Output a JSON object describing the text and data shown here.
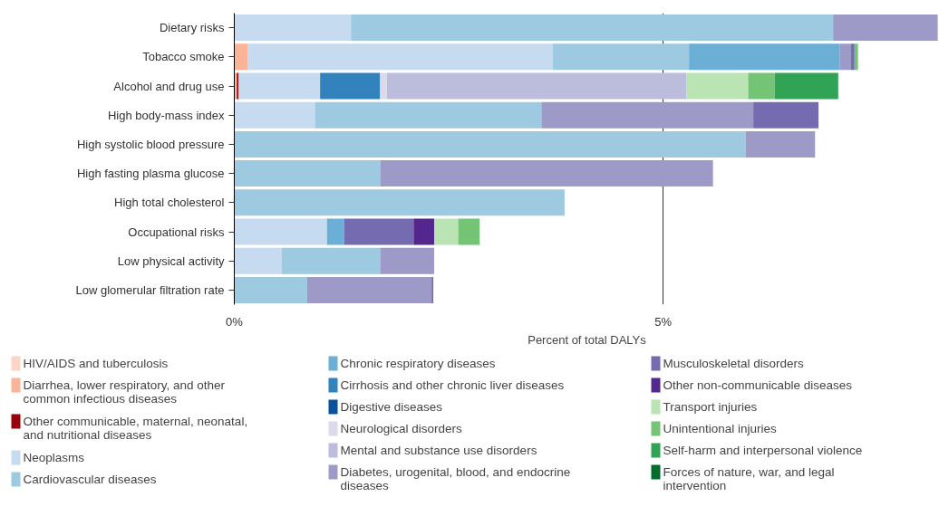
{
  "chart_data": {
    "type": "bar",
    "orientation": "horizontal",
    "stacked": true,
    "xlabel": "Percent of total DALYs",
    "categories": [
      "Dietary risks",
      "Tobacco smoke",
      "Alcohol and drug use",
      "High body-mass index",
      "High systolic blood pressure",
      "High fasting plasma glucose",
      "High total cholesterol",
      "Occupational risks",
      "Low physical activity",
      "Low glomerular filtration rate"
    ],
    "xlim": [
      0,
      8.22
    ],
    "xticks": [
      {
        "value": 0,
        "label": "0%"
      },
      {
        "value": 5,
        "label": "5%"
      }
    ],
    "grid": "x",
    "legend": "bottom",
    "series": [
      {
        "name": "HIV/AIDS and tuberculosis",
        "color": "#fdd5c4",
        "values": [
          null,
          null,
          null,
          null,
          null,
          null,
          null,
          null,
          null,
          null
        ]
      },
      {
        "name": "Diarrhea, lower respiratory, and other common infectious diseases",
        "color": "#fcb499",
        "values": [
          null,
          0.16,
          0.03,
          null,
          null,
          null,
          null,
          null,
          null,
          null
        ]
      },
      {
        "name": "Other communicable, maternal, neonatal, and nutritional diseases",
        "color": "#99000d",
        "values": [
          null,
          null,
          0.02,
          null,
          null,
          null,
          null,
          null,
          null,
          null
        ]
      },
      {
        "name": "Neoplasms",
        "color": "#c6dbef",
        "values": [
          1.36,
          3.55,
          0.95,
          0.94,
          null,
          null,
          null,
          1.08,
          0.55,
          null
        ]
      },
      {
        "name": "Cardiovascular diseases",
        "color": "#9ecae1",
        "values": [
          5.62,
          1.59,
          null,
          2.64,
          5.96,
          1.7,
          3.85,
          null,
          1.15,
          0.85
        ]
      },
      {
        "name": "Chronic respiratory diseases",
        "color": "#6baed6",
        "values": [
          null,
          1.76,
          null,
          null,
          null,
          null,
          null,
          0.2,
          null,
          null
        ]
      },
      {
        "name": "Cirrhosis and other chronic liver diseases",
        "color": "#3182bd",
        "values": [
          null,
          null,
          0.7,
          null,
          null,
          null,
          null,
          null,
          null,
          null
        ]
      },
      {
        "name": "Digestive diseases",
        "color": "#08519c",
        "values": [
          null,
          null,
          null,
          null,
          null,
          null,
          null,
          null,
          null,
          null
        ]
      },
      {
        "name": "Neurological disorders",
        "color": "#dadaeb",
        "values": [
          null,
          null,
          0.08,
          null,
          null,
          null,
          null,
          null,
          null,
          null
        ]
      },
      {
        "name": "Mental and substance use disorders",
        "color": "#bcbddc",
        "values": [
          null,
          null,
          3.49,
          null,
          null,
          null,
          null,
          null,
          null,
          null
        ]
      },
      {
        "name": "Diabetes, urogenital, blood, and endocrine diseases",
        "color": "#9e9ac8",
        "values": [
          1.22,
          0.13,
          null,
          2.47,
          0.81,
          3.88,
          null,
          null,
          0.63,
          1.45
        ]
      },
      {
        "name": "Musculoskeletal disorders",
        "color": "#756bb1",
        "values": [
          null,
          0.04,
          null,
          0.76,
          null,
          null,
          null,
          0.81,
          null,
          0.02
        ]
      },
      {
        "name": "Other non-communicable diseases",
        "color": "#54278f",
        "values": [
          null,
          null,
          null,
          null,
          null,
          null,
          null,
          0.24,
          null,
          null
        ]
      },
      {
        "name": "Transport injuries",
        "color": "#bae4b3",
        "values": [
          null,
          null,
          0.72,
          null,
          null,
          null,
          null,
          0.28,
          null,
          null
        ]
      },
      {
        "name": "Unintentional injuries",
        "color": "#74c476",
        "values": [
          null,
          0.04,
          0.31,
          null,
          null,
          null,
          null,
          0.25,
          null,
          null
        ]
      },
      {
        "name": "Self-harm and interpersonal violence",
        "color": "#31a354",
        "values": [
          null,
          null,
          0.74,
          null,
          null,
          null,
          null,
          null,
          null,
          null
        ]
      },
      {
        "name": "Forces of nature, war, and legal intervention",
        "color": "#006d2c",
        "values": [
          null,
          null,
          null,
          null,
          null,
          null,
          null,
          null,
          null,
          null
        ]
      }
    ]
  }
}
